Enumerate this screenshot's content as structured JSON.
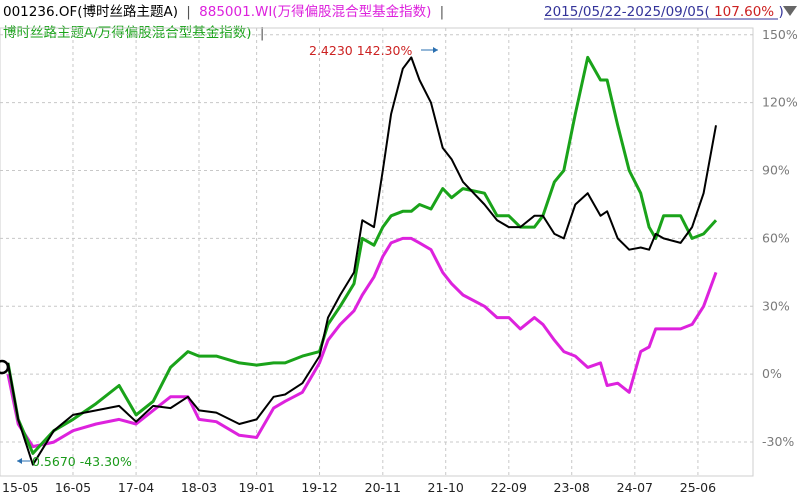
{
  "legend": {
    "series1": "001236.OF(博时丝路主题A)",
    "sep1": "|",
    "series2": "885001.WI(万得偏股混合型基金指数)",
    "sep2": "|",
    "series3": "博时丝路主题A/万得偏股混合型基金指数)",
    "sep3": "|",
    "range_prefix": "2015/05/22-2025/09/05(",
    "range_value": "107.60%",
    "range_suffix": ")"
  },
  "colors": {
    "fund": "#000000",
    "index": "#dd22dd",
    "ratio": "#1aa31a",
    "value_red": "#cc2222",
    "value_green": "#1a9a1a",
    "axis_text": "#7a7a7a",
    "range_text": "#333399"
  },
  "annotations": {
    "max": "2.4230 142.30%",
    "min": "0.5670 -43.30%"
  },
  "icons": {
    "collapse": "triangle-down-icon"
  },
  "chart_data": {
    "type": "line",
    "ylim": [
      -45,
      153
    ],
    "yticks": [
      {
        "value": 150,
        "label": "150%"
      },
      {
        "value": 120,
        "label": "120%"
      },
      {
        "value": 90,
        "label": "90%"
      },
      {
        "value": 60,
        "label": "60%"
      },
      {
        "value": 30,
        "label": "30%"
      },
      {
        "value": 0,
        "label": "0%"
      },
      {
        "value": -30,
        "label": "-30%"
      }
    ],
    "x": [
      "2015-05-22",
      "2015-07-15",
      "2015-10-01",
      "2016-01-20",
      "2016-05-01",
      "2016-09-01",
      "2017-01-01",
      "2017-04-01",
      "2017-07-01",
      "2017-10-01",
      "2018-01-01",
      "2018-03-01",
      "2018-06-01",
      "2018-10-01",
      "2019-01-01",
      "2019-04-01",
      "2019-06-01",
      "2019-09-01",
      "2019-12-01",
      "2020-01-15",
      "2020-03-20",
      "2020-06-01",
      "2020-07-15",
      "2020-09-15",
      "2020-11-01",
      "2020-12-15",
      "2021-02-15",
      "2021-04-01",
      "2021-05-15",
      "2021-07-15",
      "2021-09-15",
      "2021-11-01",
      "2022-01-01",
      "2022-04-25",
      "2022-07-01",
      "2022-09-01",
      "2022-11-01",
      "2023-01-15",
      "2023-03-01",
      "2023-05-01",
      "2023-06-20",
      "2023-08-20",
      "2023-10-25",
      "2024-01-01",
      "2024-02-05",
      "2024-04-01",
      "2024-06-01",
      "2024-08-01",
      "2024-09-15",
      "2024-10-20",
      "2024-12-01",
      "2025-03-01",
      "2025-05-01",
      "2025-07-01",
      "2025-09-05"
    ],
    "xticks": [
      {
        "date": "2015-05-22",
        "label": "15-05"
      },
      {
        "date": "2016-05-01",
        "label": "16-05"
      },
      {
        "date": "2017-04-01",
        "label": "17-04"
      },
      {
        "date": "2018-03-01",
        "label": "18-03"
      },
      {
        "date": "2019-01-01",
        "label": "19-01"
      },
      {
        "date": "2019-12-01",
        "label": "19-12"
      },
      {
        "date": "2020-11-01",
        "label": "20-11"
      },
      {
        "date": "2021-10-01",
        "label": "21-10"
      },
      {
        "date": "2022-09-01",
        "label": "22-09"
      },
      {
        "date": "2023-08-01",
        "label": "23-08"
      },
      {
        "date": "2024-07-01",
        "label": "24-07"
      },
      {
        "date": "2025-06-01",
        "label": "25-06"
      }
    ],
    "series": [
      {
        "name": "001236.OF(博时丝路主题A)",
        "values": [
          5,
          -20,
          -40,
          -25,
          -18,
          -16,
          -14,
          -21,
          -14,
          -15,
          -10,
          -16,
          -17,
          -22,
          -20,
          -10,
          -9,
          -4,
          8,
          25,
          35,
          45,
          68,
          65,
          90,
          115,
          135,
          140,
          130,
          120,
          100,
          95,
          85,
          75,
          68,
          65,
          65,
          70,
          70,
          62,
          60,
          75,
          80,
          70,
          72,
          60,
          55,
          56,
          55,
          62,
          60,
          58,
          65,
          80,
          110
        ]
      },
      {
        "name": "885001.WI(万得偏股混合型基金指数)",
        "values": [
          0,
          -22,
          -32,
          -30,
          -25,
          -22,
          -20,
          -22,
          -16,
          -10,
          -10,
          -20,
          -21,
          -27,
          -28,
          -15,
          -12,
          -8,
          5,
          15,
          22,
          28,
          35,
          43,
          52,
          58,
          60,
          60,
          58,
          55,
          45,
          40,
          35,
          30,
          25,
          25,
          20,
          25,
          22,
          15,
          10,
          8,
          3,
          5,
          -5,
          -4,
          -8,
          10,
          12,
          20,
          20,
          20,
          22,
          30,
          45
        ]
      },
      {
        "name": "博时丝路主题A/万得偏股混合型基金指数",
        "values": [
          5,
          -20,
          -35,
          -25,
          -20,
          -13,
          -5,
          -18,
          -12,
          3,
          10,
          8,
          8,
          5,
          4,
          5,
          5,
          8,
          10,
          22,
          30,
          40,
          60,
          57,
          65,
          70,
          72,
          72,
          75,
          73,
          82,
          78,
          82,
          80,
          70,
          70,
          65,
          65,
          70,
          85,
          90,
          115,
          140,
          130,
          130,
          110,
          90,
          80,
          65,
          60,
          70,
          70,
          60,
          62,
          68
        ]
      }
    ]
  }
}
